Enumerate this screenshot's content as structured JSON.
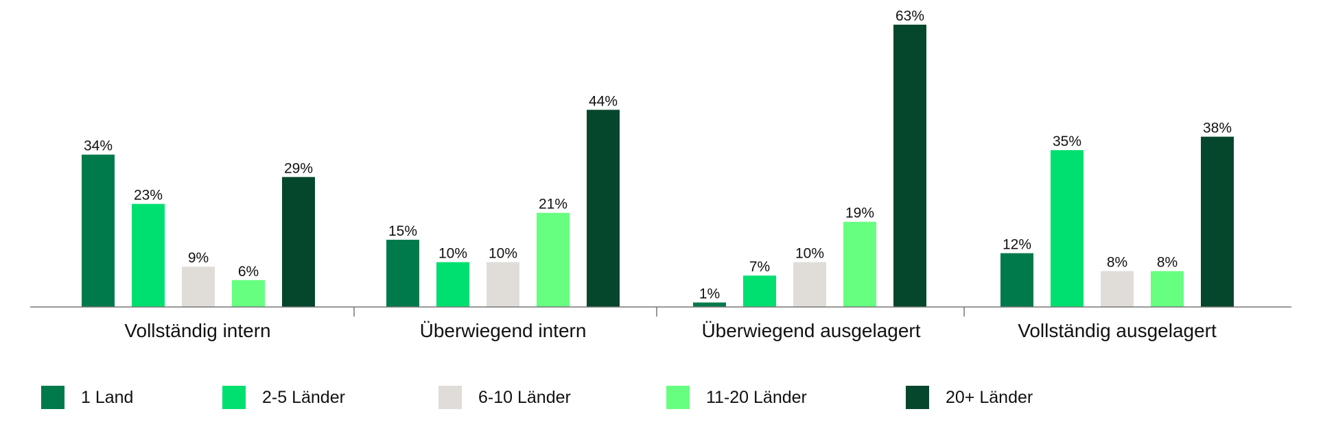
{
  "chart_data": {
    "type": "bar",
    "categories": [
      "Vollständig intern",
      "Überwiegend intern",
      "Überwiegend ausgelagert",
      "Vollständig ausgelagert"
    ],
    "series": [
      {
        "name": "1 Land",
        "color": "#007A4A",
        "values": [
          34,
          15,
          1,
          12
        ],
        "labels": [
          "34%",
          "15%",
          "1%",
          "12%"
        ]
      },
      {
        "name": "2-5 Länder",
        "color": "#00E070",
        "values": [
          23,
          10,
          7,
          35
        ],
        "labels": [
          "23%",
          "10%",
          "7%",
          "35%"
        ]
      },
      {
        "name": "6-10 Länder",
        "color": "#E0DDD8",
        "values": [
          9,
          10,
          10,
          8
        ],
        "labels": [
          "9%",
          "10%",
          "10%",
          "8%"
        ]
      },
      {
        "name": "11-20 Länder",
        "color": "#66FF80",
        "values": [
          6,
          21,
          19,
          8
        ],
        "labels": [
          "6%",
          "21%",
          "19%",
          "8%"
        ]
      },
      {
        "name": "20+ Länder",
        "color": "#05472C",
        "values": [
          29,
          44,
          63,
          38
        ],
        "labels": [
          "29%",
          "44%",
          "63%",
          "38%"
        ]
      }
    ],
    "ylim": [
      0,
      63
    ],
    "grid": false,
    "legend_position": "bottom"
  }
}
